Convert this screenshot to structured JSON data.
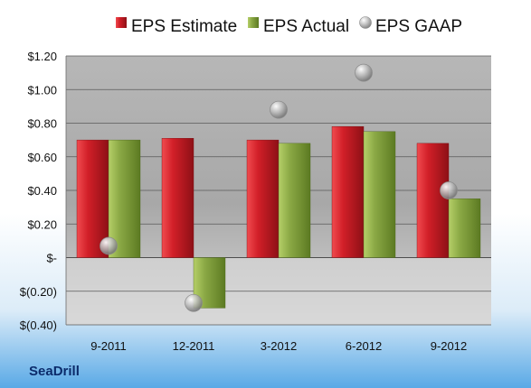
{
  "company": "SeaDrill",
  "colors": {
    "background_top": "#ffffff",
    "background_bottom": "#59a9e6",
    "plot_top": "#b3b3b3",
    "plot_bottom": "#d7d7d7",
    "grid": "#5a5a5a",
    "estimate_fill": "#cc1f26",
    "estimate_dark": "#8f1016",
    "actual_fill": "#86a63f",
    "actual_dark": "#5e7b22",
    "gaap_fill": "#c5c5c5",
    "gaap_dark": "#7f7f7f",
    "text": "#111111",
    "brand_text": "#0b2b6b"
  },
  "chart_data": {
    "type": "bar",
    "categories": [
      "9-2011",
      "12-2011",
      "3-2012",
      "6-2012",
      "9-2012"
    ],
    "series": [
      {
        "name": "EPS Estimate",
        "values": [
          0.7,
          0.71,
          0.7,
          0.78,
          0.68
        ]
      },
      {
        "name": "EPS Actual",
        "values": [
          0.7,
          -0.3,
          0.68,
          0.75,
          0.35
        ]
      },
      {
        "name": "EPS GAAP",
        "values": [
          0.07,
          -0.27,
          0.88,
          1.1,
          0.4
        ]
      }
    ],
    "yticks": [
      1.2,
      1.0,
      0.8,
      0.6,
      0.4,
      0.2,
      0,
      -0.2,
      -0.4
    ],
    "ytick_labels": [
      "$1.20",
      "$1.00",
      "$0.80",
      "$0.60",
      "$0.40",
      "$0.20",
      "$-",
      "$(0.20)",
      "$(0.40)"
    ],
    "ylim": [
      -0.4,
      1.2
    ],
    "title": "",
    "xlabel": "",
    "ylabel": "",
    "legend_position": "top",
    "grid": true
  }
}
